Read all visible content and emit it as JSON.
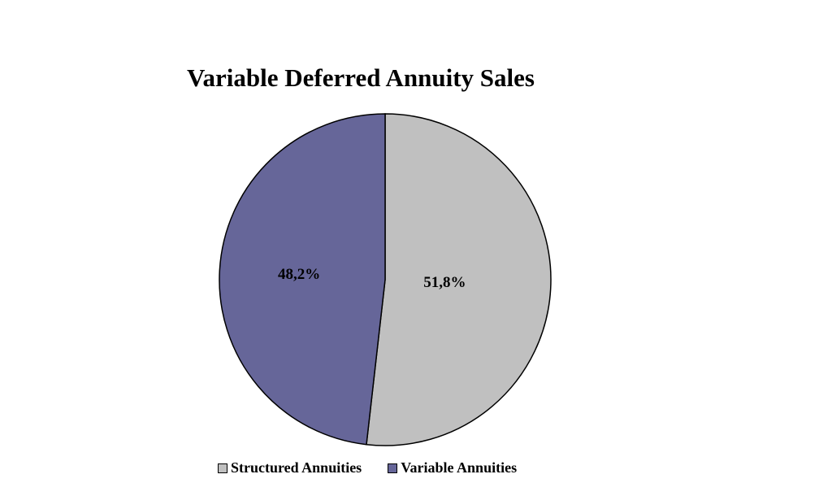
{
  "chart_data": {
    "type": "pie",
    "title": "Variable Deferred Annuity Sales",
    "slices": [
      {
        "name": "Structured Annuities",
        "value": 51.8,
        "label": "51,8%",
        "color": "#c0c0c0"
      },
      {
        "name": "Variable Annuities",
        "value": 48.2,
        "label": "48,2%",
        "color": "#666699"
      }
    ],
    "start": "12 o'clock",
    "direction": "clockwise",
    "legend_position": "bottom"
  }
}
